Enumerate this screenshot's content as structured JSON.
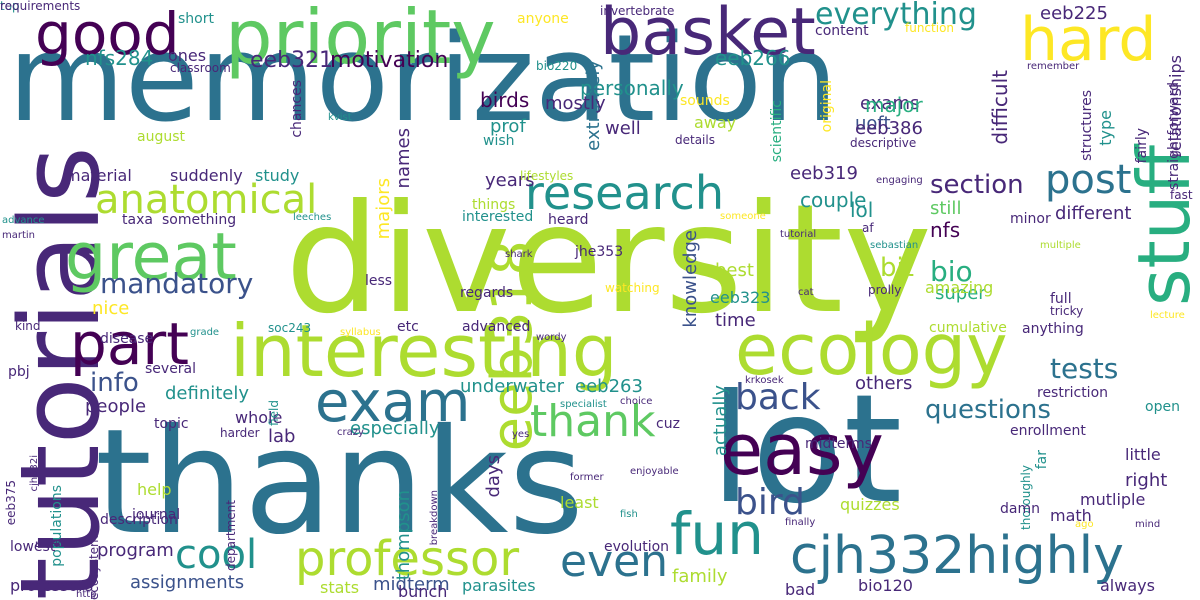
{
  "word_cloud": {
    "palette": {
      "c1": "#2c728e",
      "c2": "#3b528b",
      "c3": "#440154",
      "c4": "#482878",
      "c5": "#5ec962",
      "c6": "#21918c",
      "c7": "#28ae80",
      "c8": "#addc30",
      "c9": "#fde725"
    },
    "words": [
      {
        "text": "memorization",
        "color": "c1",
        "rank": 1
      },
      {
        "text": "diversity",
        "color": "c8",
        "rank": 2
      },
      {
        "text": "thanks",
        "color": "c1",
        "rank": 3
      },
      {
        "text": "lot",
        "color": "c1",
        "rank": 4
      },
      {
        "text": "tutorials",
        "color": "c4",
        "rank": 5
      },
      {
        "text": "basket",
        "color": "c4",
        "rank": 6
      },
      {
        "text": "priority",
        "color": "c5",
        "rank": 7
      },
      {
        "text": "good",
        "color": "c3",
        "rank": 8
      },
      {
        "text": "hard",
        "color": "c9",
        "rank": 9
      },
      {
        "text": "interesting",
        "color": "c8",
        "rank": 10
      },
      {
        "text": "ecology",
        "color": "c8",
        "rank": 11
      },
      {
        "text": "easy",
        "color": "c3",
        "rank": 12
      },
      {
        "text": "great",
        "color": "c5",
        "rank": 13
      },
      {
        "text": "part",
        "color": "c3",
        "rank": 14
      },
      {
        "text": "exam",
        "color": "c1",
        "rank": 15
      },
      {
        "text": "fun",
        "color": "c6",
        "rank": 16
      },
      {
        "text": "cjh332highly",
        "color": "c1",
        "rank": 17
      },
      {
        "text": "stuff",
        "color": "c7",
        "rank": 18
      },
      {
        "text": "research",
        "color": "c6",
        "rank": 19
      },
      {
        "text": "anatomical",
        "color": "c8",
        "rank": 20
      },
      {
        "text": "professor",
        "color": "c8",
        "rank": 21
      },
      {
        "text": "eeb318",
        "color": "c8",
        "rank": 22
      },
      {
        "text": "post",
        "color": "c1",
        "rank": 23
      },
      {
        "text": "thank",
        "color": "c5",
        "rank": 24
      },
      {
        "text": "back",
        "color": "c2",
        "rank": 25
      },
      {
        "text": "bird",
        "color": "c2",
        "rank": 26
      },
      {
        "text": "even",
        "color": "c1",
        "rank": 27
      },
      {
        "text": "cool",
        "color": "c6",
        "rank": 28
      },
      {
        "text": "everything",
        "color": "c6",
        "rank": 29
      },
      {
        "text": "mandatory",
        "color": "c2",
        "rank": 30
      },
      {
        "text": "section",
        "color": "c4",
        "rank": 31
      },
      {
        "text": "questions",
        "color": "c1",
        "rank": 32
      },
      {
        "text": "tests",
        "color": "c1",
        "rank": 33
      },
      {
        "text": "info",
        "color": "c2",
        "rank": 34
      },
      {
        "text": "bio",
        "color": "c7",
        "rank": 35
      },
      {
        "text": "motivation",
        "color": "c3",
        "rank": 36
      },
      {
        "text": "eeb321",
        "color": "c4",
        "rank": 37
      },
      {
        "text": "nfs284",
        "color": "c6",
        "rank": 38
      },
      {
        "text": "personally",
        "color": "c6",
        "rank": 39
      },
      {
        "text": "eeb266",
        "color": "c6",
        "rank": 40
      },
      {
        "text": "exams",
        "color": "c4",
        "rank": 41
      },
      {
        "text": "uoft",
        "color": "c2",
        "rank": 42
      },
      {
        "text": "major",
        "color": "c7",
        "rank": 43
      },
      {
        "text": "difficult",
        "color": "c4",
        "rank": 44
      },
      {
        "text": "eeb386",
        "color": "c4",
        "rank": 45
      },
      {
        "text": "eeb225",
        "color": "c4",
        "rank": 46
      },
      {
        "text": "birds",
        "color": "c3",
        "rank": 47
      },
      {
        "text": "prof",
        "color": "c6",
        "rank": 48
      },
      {
        "text": "extremely",
        "color": "c1",
        "rank": 49
      },
      {
        "text": "mostly",
        "color": "c4",
        "rank": 50
      },
      {
        "text": "well",
        "color": "c4",
        "rank": 51
      },
      {
        "text": "names",
        "color": "c4",
        "rank": 52
      },
      {
        "text": "eeb319",
        "color": "c4",
        "rank": 53
      },
      {
        "text": "couple",
        "color": "c6",
        "rank": 54
      },
      {
        "text": "lol",
        "color": "c6",
        "rank": 55
      },
      {
        "text": "years",
        "color": "c4",
        "rank": 56
      },
      {
        "text": "different",
        "color": "c4",
        "rank": 57
      },
      {
        "text": "still",
        "color": "c5",
        "rank": 58
      },
      {
        "text": "nfs",
        "color": "c3",
        "rank": 59
      },
      {
        "text": "bit",
        "color": "c8",
        "rank": 60
      },
      {
        "text": "knowledge",
        "color": "c2",
        "rank": 61
      },
      {
        "text": "majors",
        "color": "c9",
        "rank": 62
      },
      {
        "text": "best",
        "color": "c8",
        "rank": 63
      },
      {
        "text": "super",
        "color": "c7",
        "rank": 64
      },
      {
        "text": "amazing",
        "color": "c8",
        "rank": 65
      },
      {
        "text": "time",
        "color": "c4",
        "rank": 66
      },
      {
        "text": "eeb323",
        "color": "c6",
        "rank": 67
      },
      {
        "text": "underwater",
        "color": "c6",
        "rank": 68
      },
      {
        "text": "eeb263",
        "color": "c6",
        "rank": 69
      },
      {
        "text": "definitely",
        "color": "c6",
        "rank": 70
      },
      {
        "text": "people",
        "color": "c4",
        "rank": 71
      },
      {
        "text": "especially",
        "color": "c6",
        "rank": 72
      },
      {
        "text": "lab",
        "color": "c4",
        "rank": 73
      },
      {
        "text": "others",
        "color": "c4",
        "rank": 74
      },
      {
        "text": "actually",
        "color": "c6",
        "rank": 75
      },
      {
        "text": "days",
        "color": "c4",
        "rank": 76
      },
      {
        "text": "help",
        "color": "c8",
        "rank": 77
      },
      {
        "text": "program",
        "color": "c4",
        "rank": 78
      },
      {
        "text": "assignments",
        "color": "c2",
        "rank": 79
      },
      {
        "text": "midterm",
        "color": "c2",
        "rank": 80
      },
      {
        "text": "family",
        "color": "c8",
        "rank": 81
      },
      {
        "text": "thompson",
        "color": "c6",
        "rank": 82
      },
      {
        "text": "right",
        "color": "c4",
        "rank": 83
      },
      {
        "text": "little",
        "color": "c4",
        "rank": 84
      },
      {
        "text": "mutliple",
        "color": "c4",
        "rank": 85
      },
      {
        "text": "always",
        "color": "c4",
        "rank": 86
      },
      {
        "text": "quizzes",
        "color": "c8",
        "rank": 87
      },
      {
        "text": "math",
        "color": "c4",
        "rank": 88
      },
      {
        "text": "bio120",
        "color": "c4",
        "rank": 89
      },
      {
        "text": "professors",
        "color": "c4",
        "rank": 90
      },
      {
        "text": "stats",
        "color": "c8",
        "rank": 91
      },
      {
        "text": "parasites",
        "color": "c6",
        "rank": 92
      },
      {
        "text": "bad",
        "color": "c4",
        "rank": 93
      },
      {
        "text": "least",
        "color": "c8",
        "rank": 94
      },
      {
        "text": "whole",
        "color": "c4",
        "rank": 95
      },
      {
        "text": "nice",
        "color": "c9",
        "rank": 96
      },
      {
        "text": "material",
        "color": "c4",
        "rank": 97
      },
      {
        "text": "suddenly",
        "color": "c4",
        "rank": 98
      },
      {
        "text": "study",
        "color": "c6",
        "rank": 99
      },
      {
        "text": "taxa",
        "color": "c4",
        "rank": 100
      },
      {
        "text": "something",
        "color": "c4",
        "rank": 101
      },
      {
        "text": "ones",
        "color": "c4",
        "rank": 102
      },
      {
        "text": "august",
        "color": "c8",
        "rank": 103
      },
      {
        "text": "anyone",
        "color": "c9",
        "rank": 104
      },
      {
        "text": "short",
        "color": "c6",
        "rank": 105
      },
      {
        "text": "invertebrate",
        "color": "c4",
        "rank": 106
      },
      {
        "text": "content",
        "color": "c4",
        "rank": 107
      },
      {
        "text": "function",
        "color": "c9",
        "rank": 108
      },
      {
        "text": "classroom",
        "color": "c4",
        "rank": 109
      },
      {
        "text": "bio220",
        "color": "c6",
        "rank": 110
      },
      {
        "text": "remember",
        "color": "c4",
        "rank": 111
      },
      {
        "text": "relationships",
        "color": "c4",
        "rank": 112
      },
      {
        "text": "structures",
        "color": "c4",
        "rank": 113
      },
      {
        "text": "fairly",
        "color": "c4",
        "rank": 114
      },
      {
        "text": "straightforward",
        "color": "c4",
        "rank": 115
      },
      {
        "text": "type",
        "color": "c6",
        "rank": 116
      },
      {
        "text": "original",
        "color": "c9",
        "rank": 117
      },
      {
        "text": "scientific",
        "color": "c7",
        "rank": 118
      },
      {
        "text": "descriptive",
        "color": "c4",
        "rank": 119
      },
      {
        "text": "sounds",
        "color": "c9",
        "rank": 120
      },
      {
        "text": "away",
        "color": "c8",
        "rank": 121
      },
      {
        "text": "wish",
        "color": "c6",
        "rank": 122
      },
      {
        "text": "details",
        "color": "c4",
        "rank": 123
      },
      {
        "text": "chances",
        "color": "c4",
        "rank": 124
      },
      {
        "text": "kvist",
        "color": "c6",
        "rank": 125
      },
      {
        "text": "interested",
        "color": "c6",
        "rank": 126
      },
      {
        "text": "lifestyles",
        "color": "c8",
        "rank": 127
      },
      {
        "text": "things",
        "color": "c8",
        "rank": 128
      },
      {
        "text": "engaging",
        "color": "c4",
        "rank": 129
      },
      {
        "text": "fast",
        "color": "c4",
        "rank": 130
      },
      {
        "text": "tutorial",
        "color": "c4",
        "rank": 131
      },
      {
        "text": "someone",
        "color": "c9",
        "rank": 132
      },
      {
        "text": "minor",
        "color": "c4",
        "rank": 133
      },
      {
        "text": "af",
        "color": "c4",
        "rank": 134
      },
      {
        "text": "sebastian",
        "color": "c6",
        "rank": 135
      },
      {
        "text": "multiple",
        "color": "c8",
        "rank": 136
      },
      {
        "text": "lecture",
        "color": "c9",
        "rank": 137
      },
      {
        "text": "heard",
        "color": "c4",
        "rank": 138
      },
      {
        "text": "shark",
        "color": "c4",
        "rank": 139
      },
      {
        "text": "jhe353",
        "color": "c4",
        "rank": 140
      },
      {
        "text": "leeches",
        "color": "c6",
        "rank": 141
      },
      {
        "text": "advance",
        "color": "c6",
        "rank": 142
      },
      {
        "text": "martin",
        "color": "c4",
        "rank": 143
      },
      {
        "text": "less",
        "color": "c4",
        "rank": 144
      },
      {
        "text": "regards",
        "color": "c4",
        "rank": 145
      },
      {
        "text": "watching",
        "color": "c9",
        "rank": 146
      },
      {
        "text": "cat",
        "color": "c4",
        "rank": 147
      },
      {
        "text": "prolly",
        "color": "c4",
        "rank": 148
      },
      {
        "text": "full",
        "color": "c4",
        "rank": 149
      },
      {
        "text": "tricky",
        "color": "c4",
        "rank": 150
      },
      {
        "text": "cumulative",
        "color": "c8",
        "rank": 151
      },
      {
        "text": "anything",
        "color": "c4",
        "rank": 152
      },
      {
        "text": "disease",
        "color": "c4",
        "rank": 153
      },
      {
        "text": "kind",
        "color": "c4",
        "rank": 154
      },
      {
        "text": "grade",
        "color": "c6",
        "rank": 155
      },
      {
        "text": "soc243",
        "color": "c6",
        "rank": 156
      },
      {
        "text": "syllabus",
        "color": "c9",
        "rank": 157
      },
      {
        "text": "etc",
        "color": "c4",
        "rank": 158
      },
      {
        "text": "advanced",
        "color": "c4",
        "rank": 159
      },
      {
        "text": "wordy",
        "color": "c4",
        "rank": 160
      },
      {
        "text": "pbj",
        "color": "c4",
        "rank": 161
      },
      {
        "text": "several",
        "color": "c4",
        "rank": 162
      },
      {
        "text": "krkosek",
        "color": "c4",
        "rank": 163
      },
      {
        "text": "restriction",
        "color": "c4",
        "rank": 164
      },
      {
        "text": "open",
        "color": "c6",
        "rank": 165
      },
      {
        "text": "specialist",
        "color": "c6",
        "rank": 166
      },
      {
        "text": "choice",
        "color": "c4",
        "rank": 167
      },
      {
        "text": "cuz",
        "color": "c4",
        "rank": 168
      },
      {
        "text": "topic",
        "color": "c4",
        "rank": 169
      },
      {
        "text": "harder",
        "color": "c4",
        "rank": 170
      },
      {
        "text": "crazy",
        "color": "c4",
        "rank": 171
      },
      {
        "text": "yes",
        "color": "c4",
        "rank": 172
      },
      {
        "text": "enrollment",
        "color": "c4",
        "rank": 173
      },
      {
        "text": "thoroughly",
        "color": "c6",
        "rank": 174
      },
      {
        "text": "far",
        "color": "c6",
        "rank": 175
      },
      {
        "text": "damn",
        "color": "c4",
        "rank": 176
      },
      {
        "text": "midterms",
        "color": "c4",
        "rank": 177
      },
      {
        "text": "former",
        "color": "c4",
        "rank": 178
      },
      {
        "text": "enjoyable",
        "color": "c4",
        "rank": 179
      },
      {
        "text": "fish",
        "color": "c6",
        "rank": 180
      },
      {
        "text": "evolution",
        "color": "c4",
        "rank": 181
      },
      {
        "text": "finally",
        "color": "c4",
        "rank": 182
      },
      {
        "text": "ago",
        "color": "c9",
        "rank": 183
      },
      {
        "text": "mind",
        "color": "c4",
        "rank": 184
      },
      {
        "text": "eeb375",
        "color": "c4",
        "rank": 185
      },
      {
        "text": "cjh332i",
        "color": "c4",
        "rank": 186
      },
      {
        "text": "populations",
        "color": "c6",
        "rank": 187
      },
      {
        "text": "field",
        "color": "c6",
        "rank": 188
      },
      {
        "text": "department",
        "color": "c4",
        "rank": 189
      },
      {
        "text": "breakdown",
        "color": "c4",
        "rank": 190
      },
      {
        "text": "http",
        "color": "c4",
        "rank": 191
      },
      {
        "text": "ecosystems",
        "color": "c4",
        "rank": 192
      },
      {
        "text": "journal",
        "color": "c4",
        "rank": 193
      },
      {
        "text": "description",
        "color": "c4",
        "rank": 194
      },
      {
        "text": "lowest",
        "color": "c4",
        "rank": 195
      },
      {
        "text": "mark",
        "color": "c4",
        "rank": 196
      },
      {
        "text": "bunch",
        "color": "c4",
        "rank": 197
      },
      {
        "text": "top",
        "color": "c6",
        "rank": 198
      },
      {
        "text": "requirements",
        "color": "c4",
        "rank": 199
      }
    ]
  }
}
